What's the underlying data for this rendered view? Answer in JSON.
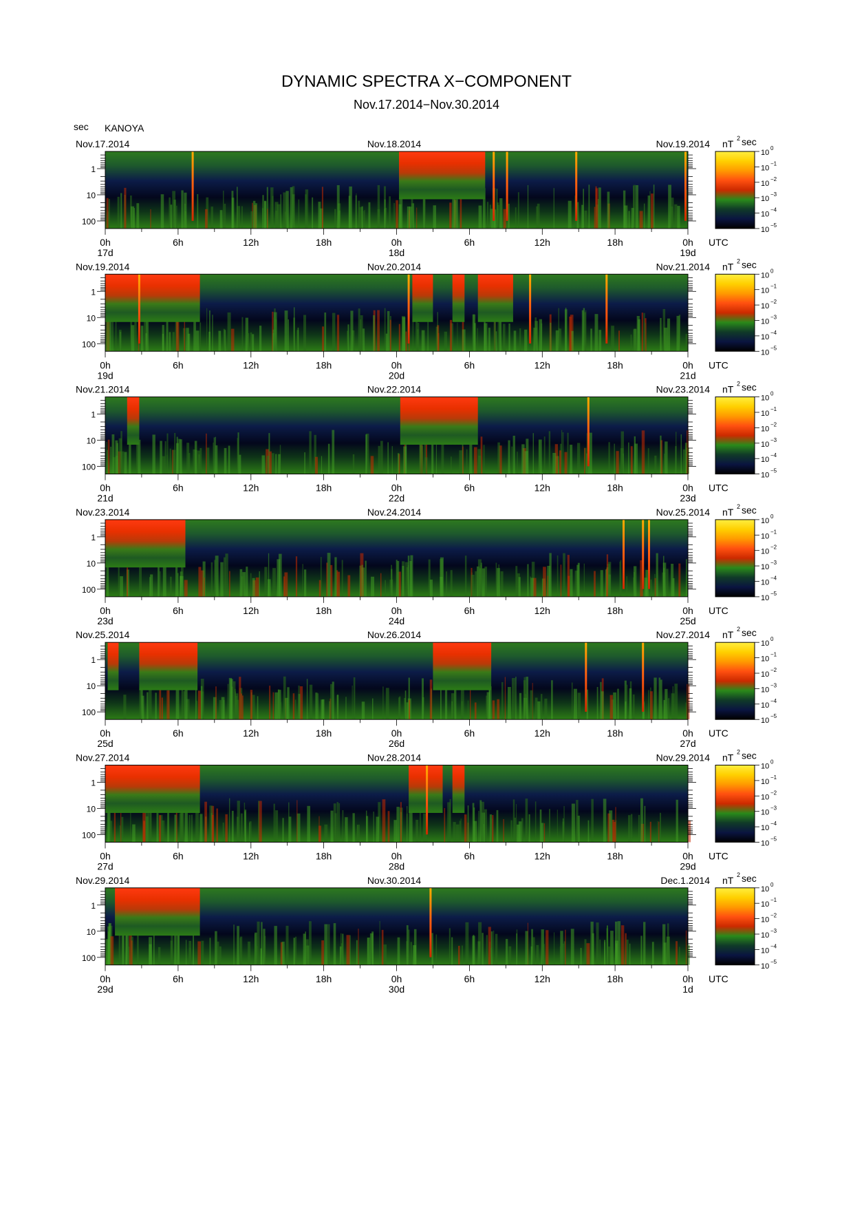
{
  "header": {
    "title": "DYNAMIC SPECTRA X−COMPONENT",
    "period": "Nov.17.2014−Nov.30.2014",
    "y_unit": "sec",
    "station": "KANOYA"
  },
  "colorbar": {
    "unit_main": "nT",
    "unit_sup": "2",
    "unit_tail": "sec",
    "ticks": [
      {
        "base": "10",
        "exp": "0"
      },
      {
        "base": "10",
        "exp": "−1"
      },
      {
        "base": "10",
        "exp": "−2"
      },
      {
        "base": "10",
        "exp": "−3"
      },
      {
        "base": "10",
        "exp": "−4"
      },
      {
        "base": "10",
        "exp": "−5"
      }
    ],
    "colors": [
      "#000000",
      "#0a1440",
      "#103a28",
      "#2a8a1a",
      "#cc2a00",
      "#ff5010",
      "#ff9a00",
      "#ffd000",
      "#ffee40"
    ]
  },
  "chart_data": {
    "type": "heatmap",
    "description_axis": "period (sec) vs time (UTC)",
    "y_ticks": [
      "1",
      "10",
      "100"
    ],
    "x_ticks": [
      "0h",
      "6h",
      "12h",
      "18h",
      "0h",
      "6h",
      "12h",
      "18h",
      "0h"
    ],
    "x_unit": "UTC",
    "color_range": [
      1e-05,
      1
    ],
    "panels": [
      {
        "start_date": "Nov.17.2014",
        "mid_date": "Nov.18.2014",
        "end_date": "Nov.19.2014",
        "day_labels": [
          "17d",
          "18d",
          "19d"
        ],
        "red_periods_hours": [
          [
            24.2,
            31.3
          ]
        ],
        "spikes_hours": [
          7.2,
          32.0,
          33.1,
          38.8,
          47.8
        ]
      },
      {
        "start_date": "Nov.19.2014",
        "mid_date": "Nov.20.2014",
        "end_date": "Nov.21.2014",
        "day_labels": [
          "19d",
          "20d",
          "21d"
        ],
        "red_periods_hours": [
          [
            0.0,
            7.8
          ],
          [
            25.3,
            27.0
          ],
          [
            28.6,
            29.6
          ],
          [
            30.7,
            33.6
          ]
        ],
        "spikes_hours": [
          2.8,
          25.0,
          35.0,
          41.3
        ]
      },
      {
        "start_date": "Nov.21.2014",
        "mid_date": "Nov.22.2014",
        "end_date": "Nov.23.2014",
        "day_labels": [
          "21d",
          "22d",
          "23d"
        ],
        "red_periods_hours": [
          [
            1.8,
            2.8
          ],
          [
            24.3,
            30.7
          ]
        ],
        "spikes_hours": [
          39.8
        ]
      },
      {
        "start_date": "Nov.23.2014",
        "mid_date": "Nov.24.2014",
        "end_date": "Nov.25.2014",
        "day_labels": [
          "23d",
          "24d",
          "25d"
        ],
        "red_periods_hours": [
          [
            0.0,
            6.6
          ]
        ],
        "spikes_hours": [
          42.7,
          44.3,
          44.8
        ]
      },
      {
        "start_date": "Nov.25.2014",
        "mid_date": "Nov.26.2014",
        "end_date": "Nov.27.2014",
        "day_labels": [
          "25d",
          "26d",
          "27d"
        ],
        "red_periods_hours": [
          [
            0.2,
            1.1
          ],
          [
            2.8,
            7.6
          ],
          [
            27.0,
            31.8
          ]
        ],
        "spikes_hours": [
          39.6,
          44.3
        ]
      },
      {
        "start_date": "Nov.27.2014",
        "mid_date": "Nov.28.2014",
        "end_date": "Nov.29.2014",
        "day_labels": [
          "27d",
          "28d",
          "29d"
        ],
        "red_periods_hours": [
          [
            0.0,
            7.8
          ],
          [
            25.0,
            27.8
          ],
          [
            28.6,
            29.6
          ]
        ],
        "spikes_hours": [
          26.5
        ]
      },
      {
        "start_date": "Nov.29.2014",
        "mid_date": "Nov.30.2014",
        "end_date": "Dec.1.2014",
        "day_labels": [
          "29d",
          "30d",
          "1d"
        ],
        "red_periods_hours": [
          [
            0.8,
            7.8
          ]
        ],
        "spikes_hours": [
          26.8
        ]
      }
    ]
  }
}
